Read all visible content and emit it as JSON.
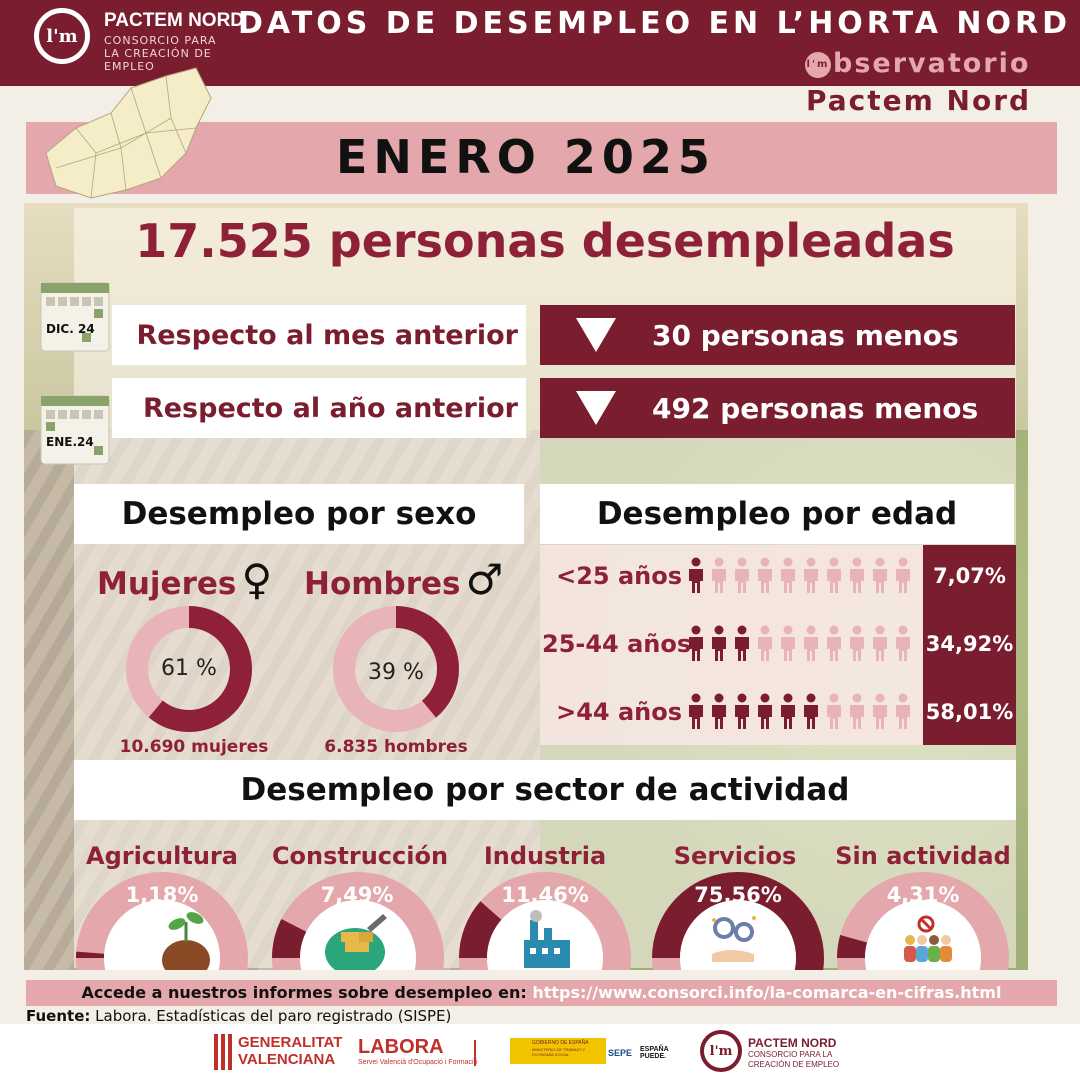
{
  "header": {
    "logo_mark": "l'm",
    "brand_name": "PACTEM NORD",
    "brand_sub": "CONSORCIO PARA LA CREACIÓN DE EMPLEO",
    "title": "DATOS DE DESEMPLEO EN L’HORTA NORD",
    "observatorio_mark": "l'm",
    "observatorio": "bservatorio",
    "observatorio_sub": "Pactem Nord"
  },
  "month": "ENERO 2025",
  "total": "17.525 personas desempleadas",
  "comparisons": [
    {
      "calendar": "DIC. 24",
      "label": "Respecto al mes anterior",
      "value": "30 personas menos"
    },
    {
      "calendar": "ENE.24",
      "label": "Respecto al año anterior",
      "value": "492 personas menos"
    }
  ],
  "sex": {
    "heading": "Desempleo por sexo",
    "women": {
      "label": "Mujeres",
      "symbol": "♀",
      "pct_text": "61 %",
      "pct": 61,
      "count": "10.690 mujeres"
    },
    "men": {
      "label": "Hombres",
      "symbol": "♂",
      "pct_text": "39 %",
      "pct": 39,
      "count": "6.835 hombres"
    }
  },
  "age": {
    "heading": "Desempleo por edad",
    "groups": [
      {
        "label": "<25 años",
        "pct": "7,07%",
        "filled": 1
      },
      {
        "label": "25-44 años",
        "pct": "34,92%",
        "filled": 3
      },
      {
        "label": ">44 años",
        "pct": "58,01%",
        "filled": 6
      }
    ]
  },
  "sectors": {
    "heading": "Desempleo por sector de actividad",
    "items": [
      {
        "name": "Agricultura",
        "pct_text": "1,18%",
        "pct": 1.18,
        "icon": "plant-icon"
      },
      {
        "name": "Construcción",
        "pct_text": "7,49%",
        "pct": 7.49,
        "icon": "trowel-bricks-icon"
      },
      {
        "name": "Industria",
        "pct_text": "11,46%",
        "pct": 11.46,
        "icon": "factory-icon"
      },
      {
        "name": "Servicios",
        "pct_text": "75,56%",
        "pct": 75.56,
        "icon": "gears-hand-icon"
      },
      {
        "name": "Sin actividad",
        "pct_text": "4,31%",
        "pct": 4.31,
        "icon": "people-prohibited-icon"
      }
    ]
  },
  "footer": {
    "link_prefix": "Accede a nuestros informes sobre desempleo en:",
    "link_url": "https://www.consorci.info/la-comarca-en-cifras.html",
    "source_label": "Fuente:",
    "source_text": "Labora. Estadísticas del paro registrado (SISPE)",
    "logos": {
      "gva_line1": "GENERALITAT",
      "gva_line2": "VALENCIANA",
      "labora": "LABORA",
      "labora_sub": "Servei Valencià d'Ocupació i Formació",
      "gov": "GOBIERNO DE ESPAÑA",
      "ministry": "MINISTERIO DE TRABAJO Y ECONOMÍA SOCIAL",
      "sepe": "SEPE",
      "espana_puede": "ESPAÑA PUEDE.",
      "pactem_mark": "l'm",
      "pactem_name": "PACTEM NORD",
      "pactem_sub": "CONSORCIO PARA LA CREACIÓN DE EMPLEO"
    }
  },
  "colors": {
    "maroon": "#7a1d2e",
    "pink": "#e4a7ac",
    "crimson": "#8e2137"
  }
}
